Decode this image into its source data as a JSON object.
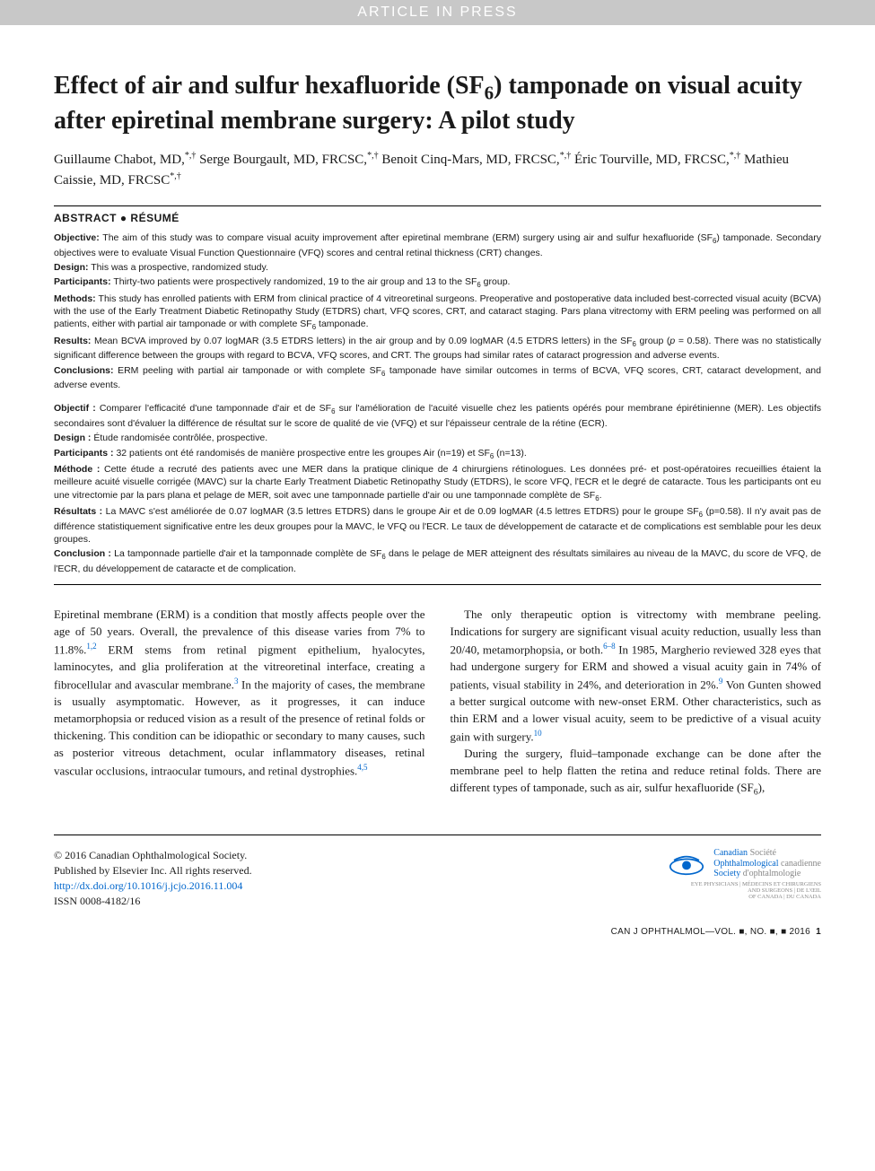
{
  "banner": "ARTICLE IN PRESS",
  "title_html": "Effect of air and sulfur hexafluoride (SF<span class='sub'>6</span>) tamponade on visual acuity after epiretinal membrane surgery: A pilot study",
  "authors_html": "Guillaume Chabot, MD,<span class='sup'>*,†</span> Serge Bourgault, MD, FRCSC,<span class='sup'>*,†</span> Benoit Cinq-Mars, MD, FRCSC,<span class='sup'>*,†</span> Éric Tourville, MD, FRCSC,<span class='sup'>*,†</span> Mathieu Caissie, MD, FRCSC<span class='sup'>*,†</span>",
  "abstract_header": "ABSTRACT ● RÉSUMÉ",
  "abstract_en": [
    {
      "label": "Objective:",
      "text": " The aim of this study was to compare visual acuity improvement after epiretinal membrane (ERM) surgery using air and sulfur hexafluoride (SF<span class='sub'>6</span>) tamponade. Secondary objectives were to evaluate Visual Function Questionnaire (VFQ) scores and central retinal thickness (CRT) changes."
    },
    {
      "label": "Design:",
      "text": " This was a prospective, randomized study."
    },
    {
      "label": "Participants:",
      "text": " Thirty-two patients were prospectively randomized, 19 to the air group and 13 to the SF<span class='sub'>6</span> group."
    },
    {
      "label": "Methods:",
      "text": " This study has enrolled patients with ERM from clinical practice of 4 vitreoretinal surgeons. Preoperative and postoperative data included best-corrected visual acuity (BCVA) with the use of the Early Treatment Diabetic Retinopathy Study (ETDRS) chart, VFQ scores, CRT, and cataract staging. Pars plana vitrectomy with ERM peeling was performed on all patients, either with partial air tamponade or with complete SF<span class='sub'>6</span> tamponade."
    },
    {
      "label": "Results:",
      "text": " Mean BCVA improved by 0.07 logMAR (3.5 ETDRS letters) in the air group and by 0.09 logMAR (4.5 ETDRS letters) in the SF<span class='sub'>6</span> group (<i>p</i> = 0.58). There was no statistically significant difference between the groups with regard to BCVA, VFQ scores, and CRT. The groups had similar rates of cataract progression and adverse events."
    },
    {
      "label": "Conclusions:",
      "text": " ERM peeling with partial air tamponade or with complete SF<span class='sub'>6</span> tamponade have similar outcomes in terms of BCVA, VFQ scores, CRT, cataract development, and adverse events."
    }
  ],
  "abstract_fr": [
    {
      "label": "Objectif :",
      "text": " Comparer l'efficacité d'une tamponnade d'air et de SF<span class='sub'>6</span> sur l'amélioration de l'acuité visuelle chez les patients opérés pour membrane épirétinienne (MER). Les objectifs secondaires sont d'évaluer la différence de résultat sur le score de qualité de vie (VFQ) et sur l'épaisseur centrale de la rétine (ECR)."
    },
    {
      "label": "Design :",
      "text": " Étude randomisée contrôlée, prospective."
    },
    {
      "label": "Participants :",
      "text": " 32 patients ont été randomisés de manière prospective entre les groupes Air (n=19) et SF<span class='sub'>6</span> (n=13)."
    },
    {
      "label": "Méthode :",
      "text": " Cette étude a recruté des patients avec une MER dans la pratique clinique de 4 chirurgiens rétinologues. Les données pré- et post-opératoires recueillies étaient la meilleure acuité visuelle corrigée (MAVC) sur la charte Early Treatment Diabetic Retinopathy Study (ETDRS), le score VFQ, l'ECR et le degré de cataracte. Tous les participants ont eu une vitrectomie par la pars plana et pelage de MER, soit avec une tamponnade partielle d'air ou une tamponnade complète de SF<span class='sub'>6</span>."
    },
    {
      "label": "Résultats :",
      "text": " La MAVC s'est améliorée de 0.07 logMAR (3.5 lettres ETDRS) dans le groupe Air et de 0.09 logMAR (4.5 lettres ETDRS) pour le groupe SF<span class='sub'>6</span> (p=0.58). Il n'y avait pas de différence statistiquement significative entre les deux groupes pour la MAVC, le VFQ ou l'ECR. Le taux de développement de cataracte et de complications est semblable pour les deux groupes."
    },
    {
      "label": "Conclusion :",
      "text": " La tamponnade partielle d'air et la tamponnade complète de SF<span class='sub'>6</span> dans le pelage de MER atteignent des résultats similaires au niveau de la MAVC, du score de VFQ, de l'ECR, du développement de cataracte et de complication."
    }
  ],
  "body": {
    "p1": "Epiretinal membrane (ERM) is a condition that mostly affects people over the age of 50 years. Overall, the prevalence of this disease varies from 7% to 11.8%.<span class='ref'>1,2</span> ERM stems from retinal pigment epithelium, hyalocytes, laminocytes, and glia proliferation at the vitreoretinal interface, creating a fibrocellular and avascular membrane.<span class='ref'>3</span> In the majority of cases, the membrane is usually asymptomatic. However, as it progresses, it can induce metamorphopsia or reduced vision as a result of the presence of retinal folds or thickening. This condition can be idiopathic or secondary to many causes, such as posterior vitreous detachment, ocular inflammatory diseases, retinal vascular occlusions, intraocular tumours, and retinal dystrophies.<span class='ref'>4,5</span>",
    "p2": "The only therapeutic option is vitrectomy with membrane peeling. Indications for surgery are significant visual acuity reduction, usually less than 20/40, metamorphopsia, or both.<span class='ref'>6–8</span> In 1985, Margherio reviewed 328 eyes that had undergone surgery for ERM and showed a visual acuity gain in 74% of patients, visual stability in 24%, and deterioration in 2%.<span class='ref'>9</span> Von Gunten showed a better surgical outcome with new-onset ERM. Other characteristics, such as thin ERM and a lower visual acuity, seem to be predictive of a visual acuity gain with surgery.<span class='ref'>10</span>",
    "p3": "During the surgery, fluid–tamponade exchange can be done after the membrane peel to help flatten the retina and reduce retinal folds. There are different types of tamponade, such as air, sulfur hexafluoride (SF<span class='sub'>6</span>),"
  },
  "footer": {
    "copyright": "© 2016 Canadian Ophthalmological Society.",
    "publisher": "Published by Elsevier Inc. All rights reserved.",
    "doi": "http://dx.doi.org/10.1016/j.jcjo.2016.11.004",
    "issn": "ISSN 0008-4182/16",
    "society": {
      "line1_en": "Canadian",
      "line1_fr": "Société",
      "line2_en": "Ophthalmological",
      "line2_fr": "canadienne",
      "line3_en": "Society",
      "line3_fr": "d'ophtalmologie"
    },
    "tagline1": "EYE PHYSICIANS | MÉDECINS ET CHIRURGIENS",
    "tagline2": "AND SURGEONS | DE L'ŒIL",
    "tagline3": "OF CANADA | DU CANADA"
  },
  "journal_line": "CAN J OPHTHALMOL—VOL. ■, NO. ■, ■ 2016",
  "page_num": "1",
  "colors": {
    "banner_bg": "#c8c8c8",
    "banner_text": "#ffffff",
    "link": "#0066cc",
    "text": "#1a1a1a",
    "grey": "#888888"
  }
}
